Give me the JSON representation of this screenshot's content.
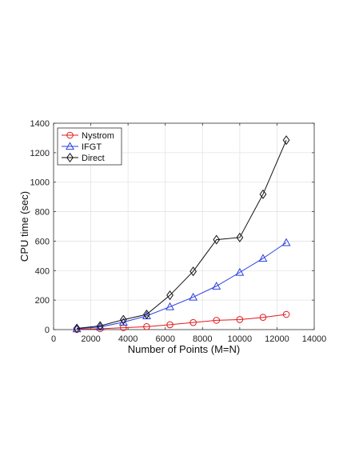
{
  "chart_data": {
    "type": "line",
    "title": "",
    "xlabel": "Number of Points (M=N)",
    "ylabel": "CPU time (sec)",
    "xlim": [
      0,
      14000
    ],
    "ylim": [
      0,
      1400
    ],
    "xticks": [
      0,
      2000,
      4000,
      6000,
      8000,
      10000,
      12000,
      14000
    ],
    "yticks": [
      0,
      200,
      400,
      600,
      800,
      1000,
      1200,
      1400
    ],
    "grid": true,
    "legend_position": "top-left",
    "series": [
      {
        "name": "Nystrom",
        "color": "#e41a1c",
        "marker": "circle",
        "x": [
          1250,
          2500,
          3750,
          5000,
          6250,
          7500,
          8750,
          10000,
          11250,
          12500
        ],
        "y": [
          2,
          6,
          13,
          20,
          33,
          48,
          63,
          68,
          83,
          103
        ]
      },
      {
        "name": "IFGT",
        "color": "#2a3fe0",
        "marker": "triangle",
        "x": [
          1250,
          2500,
          3750,
          5000,
          6250,
          7500,
          8750,
          10000,
          11250,
          12500
        ],
        "y": [
          5,
          18,
          50,
          93,
          155,
          220,
          295,
          388,
          483,
          590
        ]
      },
      {
        "name": "Direct",
        "color": "#111111",
        "marker": "diamond",
        "x": [
          1250,
          2500,
          3750,
          5000,
          6250,
          7500,
          8750,
          10000,
          11250,
          12500
        ],
        "y": [
          8,
          25,
          67,
          103,
          233,
          395,
          610,
          625,
          918,
          1285
        ]
      }
    ]
  }
}
